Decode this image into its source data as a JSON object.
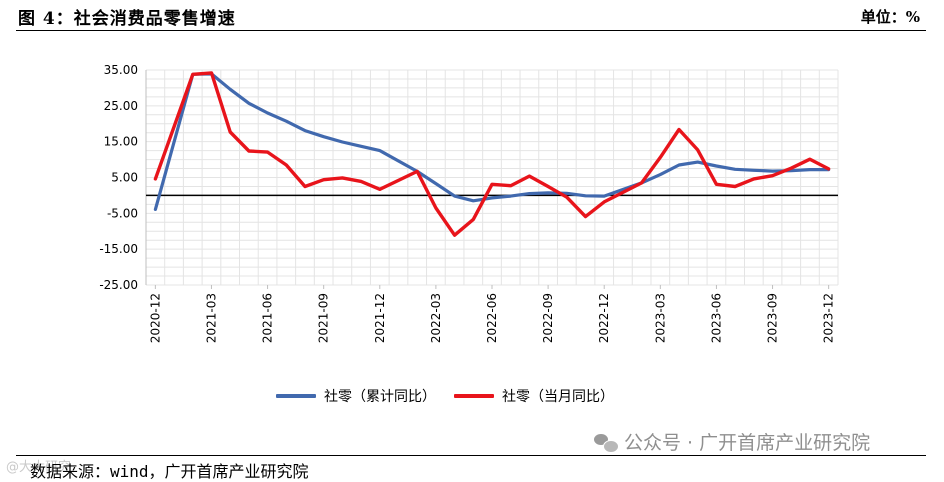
{
  "header": {
    "title": "图 4：社会消费品零售增速",
    "unit": "单位：%"
  },
  "footer": {
    "source": "数据来源：wind，广开首席产业研究院",
    "watermark": "公众号 · 广开首席产业研究院",
    "corner_mark": "@大大研究"
  },
  "colors": {
    "cumulative": "#4169AE",
    "monthly": "#E8141B",
    "grid": "#E4E4E4",
    "zero_line": "#000000"
  },
  "chart_data": {
    "type": "line",
    "y_ticks": [
      "35.00",
      "25.00",
      "15.00",
      "5.00",
      "-5.00",
      "-15.00",
      "-25.00"
    ],
    "ylim": [
      -25,
      35
    ],
    "x_tick_labels": [
      "2020-12",
      "2021-03",
      "2021-06",
      "2021-09",
      "2021-12",
      "2022-03",
      "2022-06",
      "2022-09",
      "2022-12",
      "2023-03",
      "2023-06",
      "2023-09",
      "2023-12"
    ],
    "x": [
      "2020-12",
      "2021-01",
      "2021-02",
      "2021-03",
      "2021-04",
      "2021-05",
      "2021-06",
      "2021-07",
      "2021-08",
      "2021-09",
      "2021-10",
      "2021-11",
      "2021-12",
      "2022-01",
      "2022-02",
      "2022-03",
      "2022-04",
      "2022-05",
      "2022-06",
      "2022-07",
      "2022-08",
      "2022-09",
      "2022-10",
      "2022-11",
      "2022-12",
      "2023-01",
      "2023-02",
      "2023-03",
      "2023-04",
      "2023-05",
      "2023-06",
      "2023-07",
      "2023-08",
      "2023-09",
      "2023-10",
      "2023-11",
      "2023-12"
    ],
    "series": [
      {
        "name": "社零（累计同比）",
        "color": "#4169AE",
        "values": [
          -3.9,
          null,
          33.8,
          33.9,
          29.6,
          25.7,
          23.0,
          20.7,
          18.1,
          16.4,
          14.9,
          13.7,
          12.5,
          null,
          6.7,
          3.3,
          -0.2,
          -1.5,
          -0.7,
          -0.2,
          0.5,
          0.7,
          0.6,
          -0.1,
          -0.2,
          null,
          3.5,
          5.8,
          8.5,
          9.3,
          8.2,
          7.3,
          7.0,
          6.8,
          6.9,
          7.2,
          7.2
        ]
      },
      {
        "name": "社零（当月同比）",
        "color": "#E8141B",
        "values": [
          4.6,
          null,
          33.8,
          34.2,
          17.7,
          12.4,
          12.1,
          8.5,
          2.5,
          4.4,
          4.9,
          3.9,
          1.7,
          null,
          6.7,
          -3.5,
          -11.1,
          -6.7,
          3.1,
          2.7,
          5.4,
          2.5,
          -0.5,
          -5.9,
          -1.8,
          null,
          3.5,
          10.6,
          18.4,
          12.7,
          3.1,
          2.5,
          4.6,
          5.5,
          7.6,
          10.1,
          7.4
        ]
      }
    ]
  }
}
